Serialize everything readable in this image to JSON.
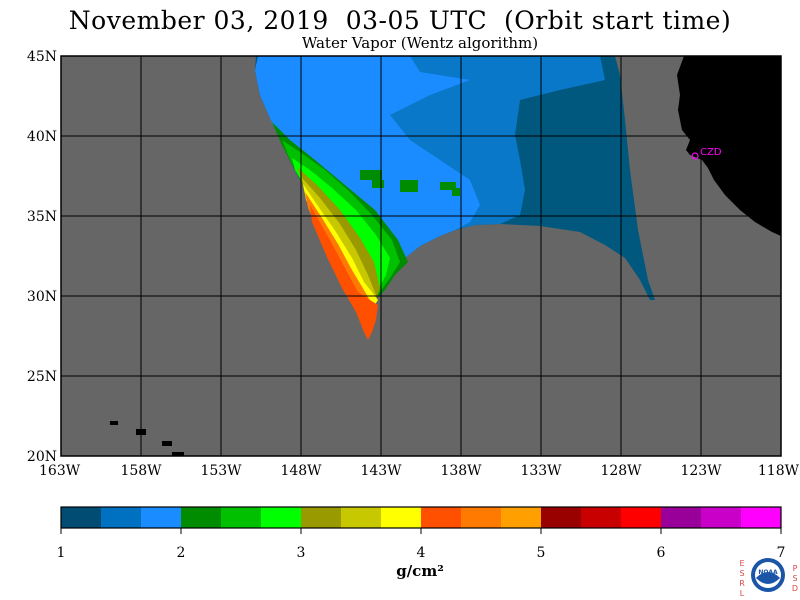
{
  "title": "November 03, 2019  03-05 UTC  (Orbit start time)",
  "subtitle": "Water Vapor (Wentz algorithm)",
  "map": {
    "lat_labels": [
      "45N",
      "40N",
      "35N",
      "30N",
      "25N",
      "20N"
    ],
    "lon_labels": [
      "163W",
      "158W",
      "153W",
      "148W",
      "143W",
      "138W",
      "133W",
      "128W",
      "123W",
      "118W"
    ],
    "lat_range": [
      20,
      45
    ],
    "lon_range": [
      -163,
      -118
    ],
    "station_label": "CZD",
    "colors": {
      "no_data": "#666666",
      "land": "#000000",
      "grid": "#000000",
      "station": "#ff00ff"
    }
  },
  "colorbar": {
    "ticks": [
      "1",
      "2",
      "3",
      "4",
      "5",
      "6",
      "7"
    ],
    "unit": "g/cm²",
    "colors": [
      "#004c73",
      "#0070c0",
      "#1a8cff",
      "#008c00",
      "#00c000",
      "#00ff00",
      "#999900",
      "#c8c800",
      "#ffff00",
      "#ff5000",
      "#ff7a00",
      "#ffa000",
      "#990000",
      "#c80000",
      "#ff0000",
      "#990099",
      "#c800c8",
      "#ff00ff"
    ]
  },
  "logo": {
    "left_letters": "ESRL",
    "right_letters": "PSD",
    "name": "noaa-logo"
  }
}
